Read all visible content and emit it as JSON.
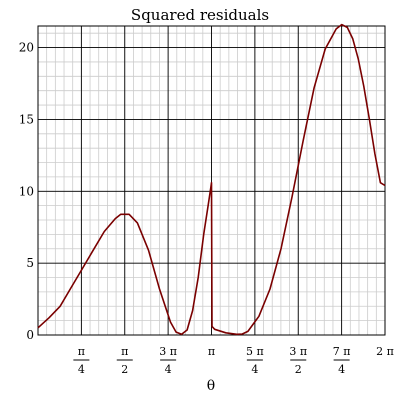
{
  "chart_data": {
    "type": "line",
    "title": "Squared residuals",
    "xlabel": "θ",
    "ylabel": "",
    "xlim": [
      0,
      6.2832
    ],
    "ylim": [
      0,
      21.5
    ],
    "grid": true,
    "y_ticks": [
      {
        "value": 0,
        "label": "0"
      },
      {
        "value": 5,
        "label": "5"
      },
      {
        "value": 10,
        "label": "10"
      },
      {
        "value": 15,
        "label": "15"
      },
      {
        "value": 20,
        "label": "20"
      }
    ],
    "x_ticks": [
      {
        "value": 0.7854,
        "num": "π",
        "den": "4"
      },
      {
        "value": 1.5708,
        "num": "π",
        "den": "2"
      },
      {
        "value": 2.3562,
        "num": "3 π",
        "den": "4"
      },
      {
        "value": 3.1416,
        "label": "π"
      },
      {
        "value": 3.927,
        "num": "5 π",
        "den": "4"
      },
      {
        "value": 4.7124,
        "num": "3 π",
        "den": "2"
      },
      {
        "value": 5.4978,
        "num": "7 π",
        "den": "4"
      },
      {
        "value": 6.2832,
        "label": "2 π"
      }
    ],
    "series": [
      {
        "color": "#7a0000",
        "x": [
          0,
          0.2,
          0.4,
          0.6,
          0.8,
          1.0,
          1.2,
          1.4,
          1.5,
          1.65,
          1.8,
          2.0,
          2.2,
          2.4,
          2.5,
          2.6,
          2.7,
          2.8,
          2.9,
          3.0,
          3.08,
          3.13,
          3.141,
          3.15,
          3.2,
          3.4,
          3.6,
          3.7,
          3.8,
          4.0,
          4.2,
          4.4,
          4.6,
          4.8,
          5.0,
          5.2,
          5.4,
          5.5,
          5.6,
          5.7,
          5.8,
          5.9,
          6.0,
          6.1,
          6.2,
          6.2832
        ],
        "y": [
          0.5,
          1.2,
          2.0,
          3.3,
          4.6,
          5.9,
          7.2,
          8.1,
          8.4,
          8.4,
          7.8,
          5.9,
          3.2,
          0.9,
          0.2,
          0.05,
          0.35,
          1.7,
          4.0,
          7.0,
          9.0,
          10.3,
          10.6,
          0.6,
          0.4,
          0.15,
          0.05,
          0.07,
          0.25,
          1.3,
          3.2,
          6.0,
          9.6,
          13.5,
          17.2,
          19.9,
          21.3,
          21.6,
          21.4,
          20.6,
          19.2,
          17.3,
          15.0,
          12.6,
          10.6,
          10.4
        ]
      }
    ]
  }
}
